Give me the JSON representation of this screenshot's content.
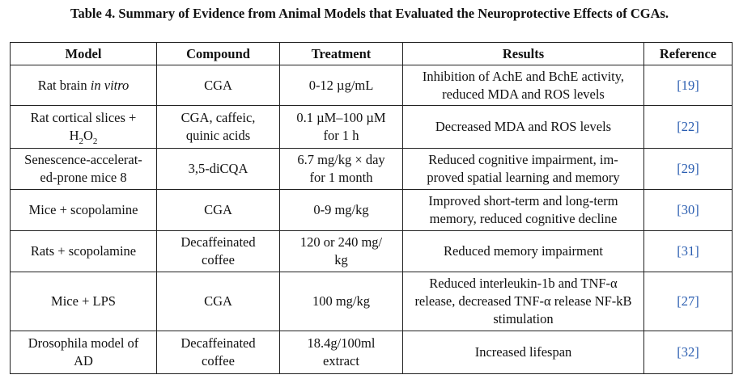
{
  "caption": "Table 4. Summary of Evidence from Animal Models that Evaluated the Neuroprotective Effects of CGAs.",
  "headers": {
    "model": "Model",
    "compound": "Compound",
    "treatment": "Treatment",
    "results": "Results",
    "reference": "Reference"
  },
  "rows": [
    {
      "model": "Rat brain",
      "model_it": "in vitro",
      "compound": "CGA",
      "treatment": "0-12 µg/mL",
      "results1": "Inhibition of AchE and BchE activity,",
      "results2": "reduced MDA and ROS levels",
      "ref": "[19]"
    },
    {
      "model1": "Rat cortical slices +",
      "model2a": "H",
      "model2sub1": "2",
      "model2b": "O",
      "model2sub2": "2",
      "compound1": "CGA, caffeic,",
      "compound2": "quinic acids",
      "treatment1": "0.1 µM–100 µM",
      "treatment2": "for 1 h",
      "results": "Decreased MDA and ROS levels",
      "ref": "[22]"
    },
    {
      "model1": "Senescence-accelerat-",
      "model2": "ed-prone mice 8",
      "compound": "3,5-diCQA",
      "treatment1": "6.7 mg/kg × day",
      "treatment2": "for 1 month",
      "results1": "Reduced cognitive impairment, im-",
      "results2": "proved spatial learning and memory",
      "ref": "[29]"
    },
    {
      "model": "Mice + scopolamine",
      "compound": "CGA",
      "treatment": "0-9 mg/kg",
      "results1": "Improved short-term and long-term",
      "results2": "memory, reduced cognitive decline",
      "ref": "[30]"
    },
    {
      "model": "Rats + scopolamine",
      "compound1": "Decaffeinated",
      "compound2": "coffee",
      "treatment1": "120 or 240 mg/",
      "treatment2": "kg",
      "results": "Reduced memory impairment",
      "ref": "[31]"
    },
    {
      "model": "Mice + LPS",
      "compound": "CGA",
      "treatment": "100 mg/kg",
      "results1": "Reduced interleukin-1b and TNF-α",
      "results2": "release, decreased TNF-α release NF-kB",
      "results3": "stimulation",
      "ref": "[27]"
    },
    {
      "model1": "Drosophila model of",
      "model2": "AD",
      "compound1": "Decaffeinated",
      "compound2": "coffee",
      "treatment1": "18.4g/100ml",
      "treatment2": "extract",
      "results": "Increased lifespan",
      "ref": "[32]"
    }
  ]
}
